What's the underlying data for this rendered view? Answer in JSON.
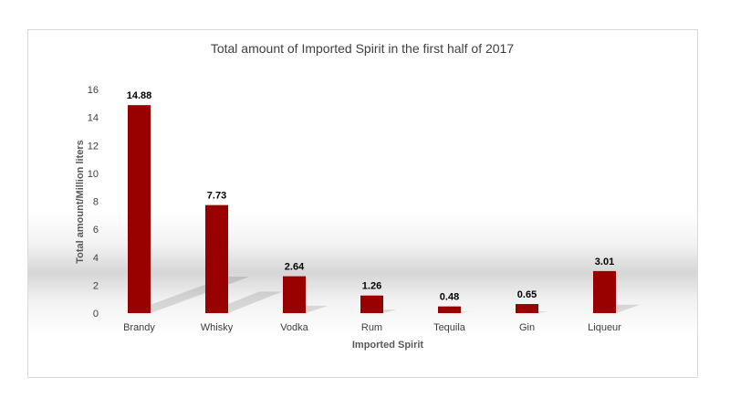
{
  "chart_data": {
    "type": "bar",
    "title": "Total amount of Imported Spirit in the first half of 2017",
    "xlabel": "Imported Spirit",
    "ylabel": "Total amount/Million liters",
    "categories": [
      "Brandy",
      "Whisky",
      "Vodka",
      "Rum",
      "Tequila",
      "Gin",
      "Liqueur"
    ],
    "values": [
      14.88,
      7.73,
      2.64,
      1.26,
      0.48,
      0.65,
      3.01
    ],
    "data_labels": [
      "14.88",
      "7.73",
      "2.64",
      "1.26",
      "0.48",
      "0.65",
      "3.01"
    ],
    "yticks": [
      "0",
      "2",
      "4",
      "6",
      "8",
      "10",
      "12",
      "14",
      "16"
    ],
    "ylim": [
      0,
      16
    ],
    "grid": false,
    "legend": "none",
    "bar_color": "#990000"
  }
}
